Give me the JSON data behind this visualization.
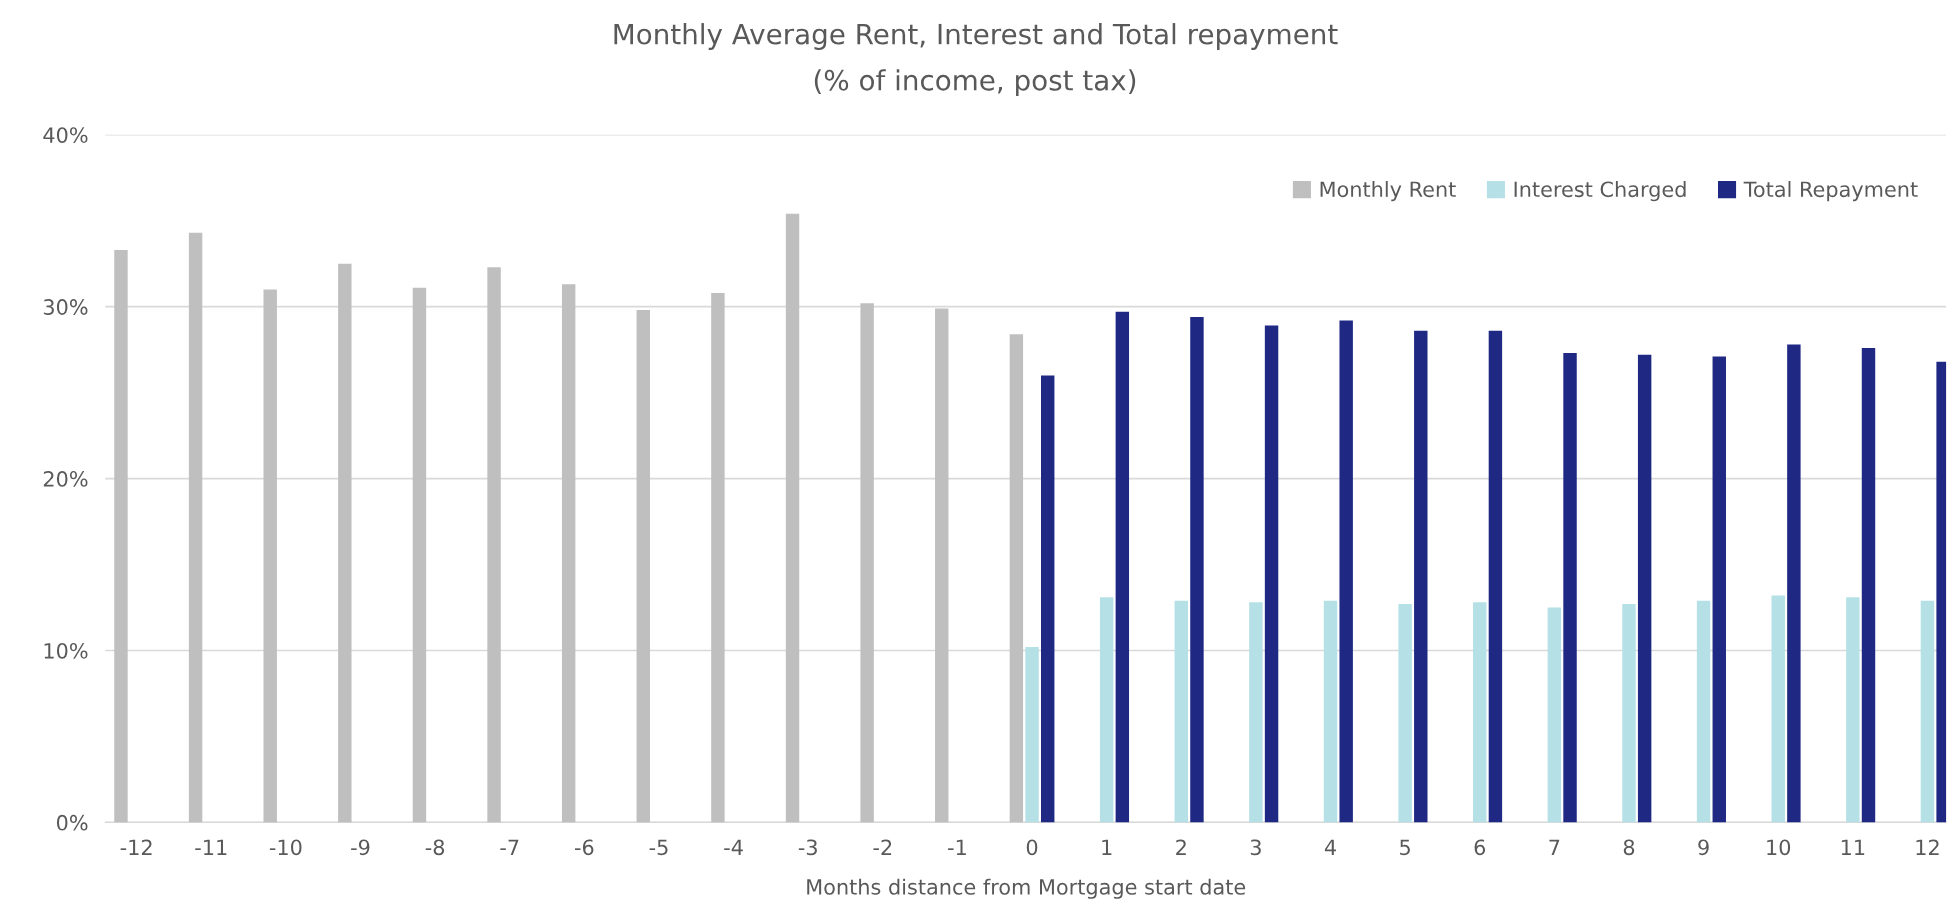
{
  "chart_data": {
    "type": "bar",
    "title": "Monthly Average Rent, Interest and Total repayment",
    "subtitle": "(% of income, post tax)",
    "xlabel": "Months distance from Mortgage start date",
    "categories": [
      "-12",
      "-11",
      "-10",
      "-9",
      "-8",
      "-7",
      "-6",
      "-5",
      "-4",
      "-3",
      "-2",
      "-1",
      "0",
      "1",
      "2",
      "3",
      "4",
      "5",
      "6",
      "7",
      "8",
      "9",
      "10",
      "11",
      "12"
    ],
    "series": [
      {
        "name": "Monthly Rent",
        "color": "#bfbfbf",
        "values": [
          33.3,
          34.3,
          31.0,
          32.5,
          31.1,
          32.3,
          31.3,
          29.8,
          30.8,
          35.4,
          30.2,
          29.9,
          28.4,
          null,
          null,
          null,
          null,
          null,
          null,
          null,
          null,
          null,
          null,
          null,
          null
        ]
      },
      {
        "name": "Interest Charged",
        "color": "#b4e0e6",
        "values": [
          null,
          null,
          null,
          null,
          null,
          null,
          null,
          null,
          null,
          null,
          null,
          null,
          10.2,
          13.1,
          12.9,
          12.8,
          12.9,
          12.7,
          12.8,
          12.5,
          12.7,
          12.9,
          13.2,
          13.1,
          12.9
        ]
      },
      {
        "name": "Total Repayment",
        "color": "#1f2883",
        "values": [
          null,
          null,
          null,
          null,
          null,
          null,
          null,
          null,
          null,
          null,
          null,
          null,
          26.0,
          29.7,
          29.4,
          28.9,
          29.2,
          28.6,
          28.6,
          27.3,
          27.2,
          27.1,
          27.8,
          27.6,
          26.8
        ]
      }
    ],
    "ylim": [
      0,
      40
    ],
    "yticks": [
      {
        "value": 0,
        "label": "0%"
      },
      {
        "value": 10,
        "label": "10%"
      },
      {
        "value": 20,
        "label": "20%"
      },
      {
        "value": 30,
        "label": "30%"
      },
      {
        "value": 40,
        "label": "40%"
      }
    ],
    "grid": "y",
    "legend": "top right"
  }
}
